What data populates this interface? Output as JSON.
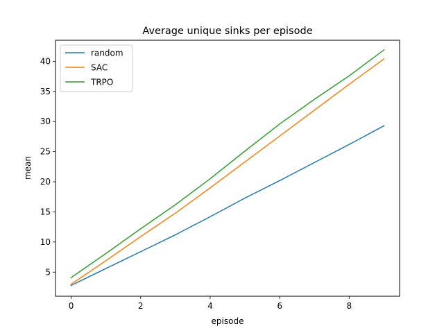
{
  "chart_data": {
    "type": "line",
    "title": "Average unique sinks per episode",
    "xlabel": "episode",
    "ylabel": "mean",
    "x": [
      0,
      1,
      2,
      3,
      4,
      5,
      6,
      7,
      8,
      9
    ],
    "xlim": [
      -0.45,
      9.45
    ],
    "ylim": [
      1.0,
      43.5
    ],
    "xticks": [
      0,
      2,
      4,
      6,
      8
    ],
    "yticks": [
      5,
      10,
      15,
      20,
      25,
      30,
      35,
      40
    ],
    "grid": false,
    "legend_position": "top-left",
    "series": [
      {
        "name": "random",
        "color": "#1f77b4",
        "values": [
          2.8,
          5.6,
          8.4,
          11.2,
          14.2,
          17.3,
          20.2,
          23.2,
          26.2,
          29.3
        ]
      },
      {
        "name": "SAC",
        "color": "#ff7f0e",
        "values": [
          3.0,
          6.9,
          10.9,
          14.8,
          19.0,
          23.3,
          27.6,
          31.9,
          36.2,
          40.4
        ]
      },
      {
        "name": "TRPO",
        "color": "#2ca02c",
        "values": [
          4.1,
          8.1,
          12.2,
          16.2,
          20.5,
          25.1,
          29.6,
          33.7,
          37.6,
          41.9
        ]
      }
    ]
  }
}
